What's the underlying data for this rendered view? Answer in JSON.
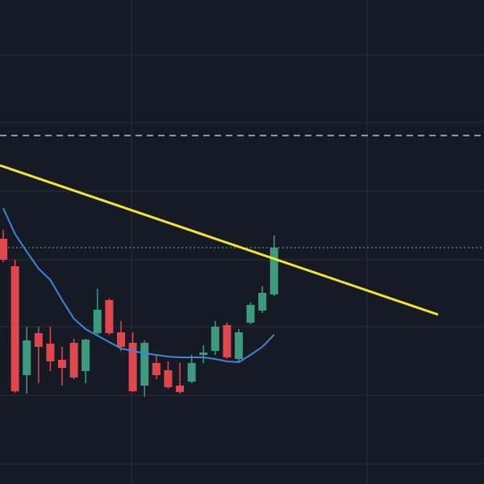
{
  "chart_data": {
    "type": "candlestick",
    "up_color": "#3d9a7d",
    "down_color": "#e0474c",
    "open": [
      304,
      270,
      135,
      187,
      174,
      154,
      175,
      140,
      187,
      228,
      188,
      175,
      122,
      150,
      141,
      122,
      127,
      160,
      165,
      197,
      155,
      200,
      215,
      235
    ],
    "high": [
      315,
      278,
      195,
      195,
      195,
      170,
      180,
      180,
      242,
      230,
      202,
      188,
      178,
      160,
      152,
      150,
      160,
      172,
      202,
      200,
      192,
      225,
      245,
      308
    ],
    "low": [
      275,
      113,
      112,
      125,
      140,
      122,
      130,
      125,
      185,
      185,
      165,
      114,
      108,
      130,
      118,
      112,
      125,
      150,
      160,
      155,
      152,
      198,
      212,
      233
    ],
    "close": [
      278,
      115,
      178,
      170,
      152,
      144,
      132,
      179,
      216,
      187,
      170,
      115,
      175,
      135,
      120,
      114,
      150,
      163,
      195,
      157,
      188,
      222,
      237,
      293
    ],
    "moving_average": {
      "color": "#3f84d8",
      "values": [
        342,
        310,
        288,
        267,
        253,
        228,
        205,
        192,
        184,
        176,
        168,
        165,
        162,
        160,
        158,
        157,
        157,
        157,
        155,
        152,
        151,
        160,
        170,
        185
      ]
    },
    "trendline": {
      "color": "#f2e436",
      "values": [
        395,
        210
      ]
    },
    "price_lines": [
      {
        "value": 432,
        "color": "#b8bcc6",
        "style": "dashed"
      },
      {
        "value": 293,
        "color": "#3d9a7d",
        "style": "dotted"
      }
    ],
    "ylim": [
      0,
      600
    ],
    "yticks": [
      25,
      110,
      195,
      278,
      363,
      448,
      532
    ],
    "grid": true,
    "grid_color": "#2a2e3a"
  }
}
